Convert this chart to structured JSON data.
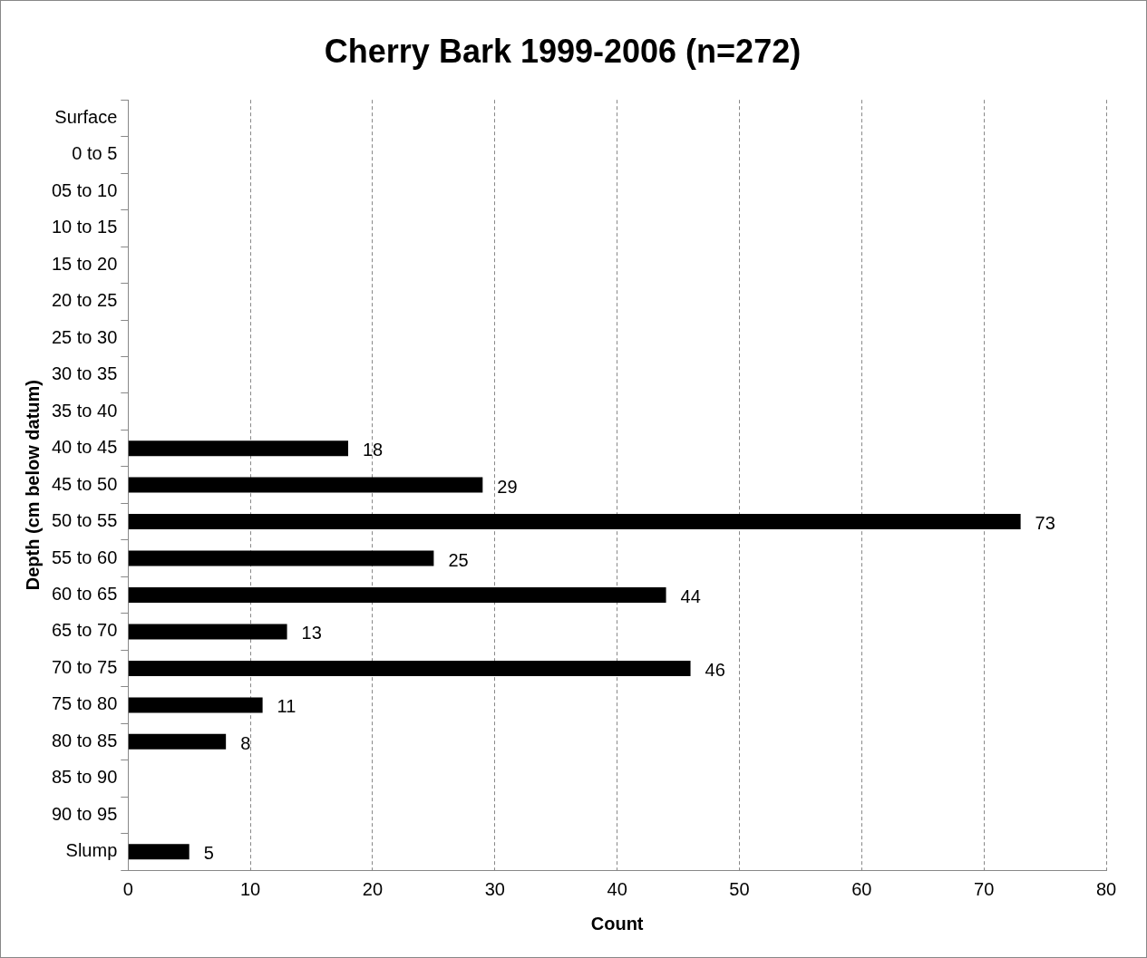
{
  "chart_data": {
    "type": "bar",
    "orientation": "horizontal",
    "title": "Cherry Bark 1999-2006 (n=272)",
    "xlabel": "Count",
    "ylabel": "Depth (cm below datum)",
    "categories": [
      "Surface",
      "0 to 5",
      "05 to 10",
      "10 to 15",
      "15 to 20",
      "20 to 25",
      "25 to 30",
      "30 to 35",
      "35 to 40",
      "40 to 45",
      "45 to 50",
      "50 to 55",
      "55 to 60",
      "60 to 65",
      "65 to 70",
      "70 to 75",
      "75 to 80",
      "80 to 85",
      "85 to 90",
      "90 to 95",
      "Slump"
    ],
    "values": [
      null,
      null,
      null,
      null,
      null,
      null,
      null,
      null,
      null,
      18,
      29,
      73,
      25,
      44,
      13,
      46,
      11,
      8,
      null,
      null,
      5
    ],
    "color": "#000000",
    "xlim": [
      0,
      80
    ],
    "xticks": [
      0,
      10,
      20,
      30,
      40,
      50,
      60,
      70,
      80
    ],
    "grid": "x",
    "data_labels": true
  }
}
